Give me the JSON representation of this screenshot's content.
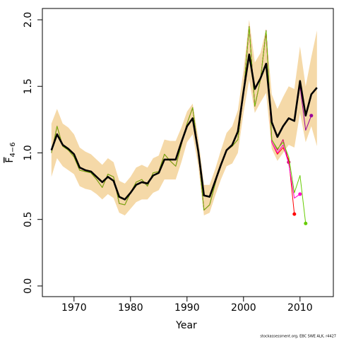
{
  "chart_data": {
    "type": "line",
    "xlabel": "Year",
    "ylabel": "F",
    "ylabel_sub": "4−6",
    "footnote": "stockassessment.org, EBC SWE ALK, r4427",
    "xlim": [
      1964.4,
      2015.9
    ],
    "ylim": [
      -0.08,
      2.085
    ],
    "xticks": [
      1970,
      1980,
      1990,
      2000,
      2010
    ],
    "yticks": [
      {
        "value": 0,
        "label": "0.0"
      },
      {
        "value": 0.5,
        "label": "0.5"
      },
      {
        "value": 1,
        "label": "1.0"
      },
      {
        "value": 1.5,
        "label": "1.5"
      },
      {
        "value": 2,
        "label": "2.0"
      }
    ],
    "x": [
      1966,
      1967,
      1968,
      1969,
      1970,
      1971,
      1972,
      1973,
      1974,
      1975,
      1976,
      1977,
      1978,
      1979,
      1980,
      1981,
      1982,
      1983,
      1984,
      1985,
      1986,
      1987,
      1988,
      1989,
      1990,
      1991,
      1992,
      1993,
      1994,
      1995,
      1996,
      1997,
      1998,
      1999,
      2000,
      2001,
      2002,
      2003,
      2004,
      2005,
      2006,
      2007,
      2008,
      2009,
      2010,
      2011,
      2012,
      2013
    ],
    "band": {
      "color": "#f5d9a8",
      "low": [
        0.82,
        0.96,
        0.9,
        0.87,
        0.84,
        0.75,
        0.73,
        0.72,
        0.69,
        0.65,
        0.69,
        0.66,
        0.55,
        0.53,
        0.58,
        0.63,
        0.65,
        0.65,
        0.7,
        0.72,
        0.8,
        0.8,
        0.8,
        0.93,
        1.08,
        1.14,
        0.9,
        0.53,
        0.55,
        0.68,
        0.8,
        0.9,
        0.92,
        1.0,
        1.3,
        1.55,
        1.3,
        1.38,
        1.45,
        1.03,
        0.94,
        1.0,
        1.06,
        1.04,
        1.3,
        1.08,
        1.2,
        1.05
      ],
      "high": [
        1.22,
        1.33,
        1.22,
        1.19,
        1.14,
        1.04,
        1.01,
        0.99,
        0.95,
        0.91,
        0.96,
        0.93,
        0.79,
        0.77,
        0.82,
        0.89,
        0.91,
        0.89,
        0.96,
        0.98,
        1.1,
        1.09,
        1.09,
        1.19,
        1.31,
        1.37,
        1.11,
        0.76,
        0.76,
        0.88,
        1.02,
        1.15,
        1.2,
        1.32,
        1.62,
        2.0,
        1.68,
        1.75,
        1.93,
        1.44,
        1.33,
        1.42,
        1.5,
        1.48,
        1.8,
        1.5,
        1.72,
        1.92
      ]
    },
    "series": [
      {
        "color": "#cc0066",
        "width": 1,
        "values": [
          1.0,
          1.2,
          1.05,
          1.02,
          0.97,
          0.87,
          0.86,
          0.85,
          0.8,
          0.74,
          0.84,
          0.82,
          0.62,
          0.61,
          0.7,
          0.78,
          0.8,
          0.75,
          0.85,
          0.86,
          0.99,
          0.94,
          0.9,
          1.06,
          1.22,
          1.34,
          1.01,
          0.57,
          0.61,
          0.77,
          0.92,
          1.02,
          1.05,
          1.1,
          1.45,
          1.95,
          1.35,
          1.55,
          1.92,
          1.1,
          1.02,
          1.1,
          0.93,
          null,
          null,
          null,
          null,
          null
        ]
      },
      {
        "color": "#ff0000",
        "width": 1,
        "values": [
          1.0,
          1.2,
          1.05,
          1.02,
          0.97,
          0.87,
          0.86,
          0.85,
          0.8,
          0.74,
          0.84,
          0.82,
          0.62,
          0.61,
          0.7,
          0.78,
          0.8,
          0.75,
          0.85,
          0.86,
          0.99,
          0.94,
          0.9,
          1.06,
          1.22,
          1.34,
          1.01,
          0.57,
          0.61,
          0.77,
          0.92,
          1.02,
          1.05,
          1.1,
          1.45,
          1.95,
          1.35,
          1.55,
          1.92,
          1.08,
          0.99,
          1.04,
          0.95,
          0.54,
          null,
          null,
          null,
          null
        ]
      },
      {
        "color": "#ff00cc",
        "width": 1,
        "values": [
          1.0,
          1.2,
          1.05,
          1.02,
          0.97,
          0.87,
          0.86,
          0.85,
          0.8,
          0.74,
          0.84,
          0.82,
          0.62,
          0.61,
          0.7,
          0.78,
          0.8,
          0.75,
          0.85,
          0.86,
          0.99,
          0.94,
          0.9,
          1.06,
          1.22,
          1.34,
          1.01,
          0.57,
          0.61,
          0.77,
          0.92,
          1.02,
          1.05,
          1.1,
          1.45,
          1.95,
          1.35,
          1.55,
          1.92,
          1.08,
          1.0,
          1.06,
          0.92,
          0.66,
          0.69,
          null,
          null,
          null
        ]
      },
      {
        "color": "#66cc00",
        "width": 1,
        "values": [
          1.0,
          1.2,
          1.05,
          1.02,
          0.97,
          0.87,
          0.86,
          0.85,
          0.8,
          0.74,
          0.84,
          0.82,
          0.62,
          0.61,
          0.7,
          0.78,
          0.8,
          0.75,
          0.85,
          0.86,
          0.99,
          0.94,
          0.9,
          1.06,
          1.22,
          1.34,
          1.01,
          0.57,
          0.61,
          0.77,
          0.92,
          1.02,
          1.05,
          1.1,
          1.45,
          1.95,
          1.35,
          1.55,
          1.92,
          1.1,
          1.03,
          1.08,
          0.97,
          0.7,
          0.83,
          0.47,
          null,
          null
        ]
      },
      {
        "color": "#990099",
        "width": 1,
        "values": [
          1.02,
          1.14,
          1.06,
          1.03,
          0.99,
          0.89,
          0.87,
          0.86,
          0.82,
          0.78,
          0.82,
          0.79,
          0.67,
          0.65,
          0.7,
          0.76,
          0.78,
          0.77,
          0.83,
          0.85,
          0.95,
          0.95,
          0.95,
          1.08,
          1.2,
          1.26,
          1.01,
          0.68,
          0.67,
          0.79,
          0.91,
          1.02,
          1.06,
          1.16,
          1.46,
          1.74,
          1.48,
          1.56,
          1.67,
          1.22,
          1.12,
          1.2,
          1.26,
          1.24,
          1.5,
          1.17,
          1.28,
          null
        ]
      },
      {
        "color": "#000000",
        "width": 2.6,
        "values": [
          1.02,
          1.14,
          1.06,
          1.03,
          0.99,
          0.89,
          0.87,
          0.86,
          0.82,
          0.78,
          0.82,
          0.79,
          0.67,
          0.65,
          0.7,
          0.76,
          0.78,
          0.77,
          0.83,
          0.85,
          0.95,
          0.95,
          0.95,
          1.08,
          1.2,
          1.26,
          1.01,
          0.68,
          0.67,
          0.79,
          0.91,
          1.02,
          1.06,
          1.16,
          1.46,
          1.74,
          1.48,
          1.56,
          1.67,
          1.23,
          1.12,
          1.2,
          1.26,
          1.24,
          1.54,
          1.28,
          1.44,
          1.49
        ]
      }
    ]
  }
}
